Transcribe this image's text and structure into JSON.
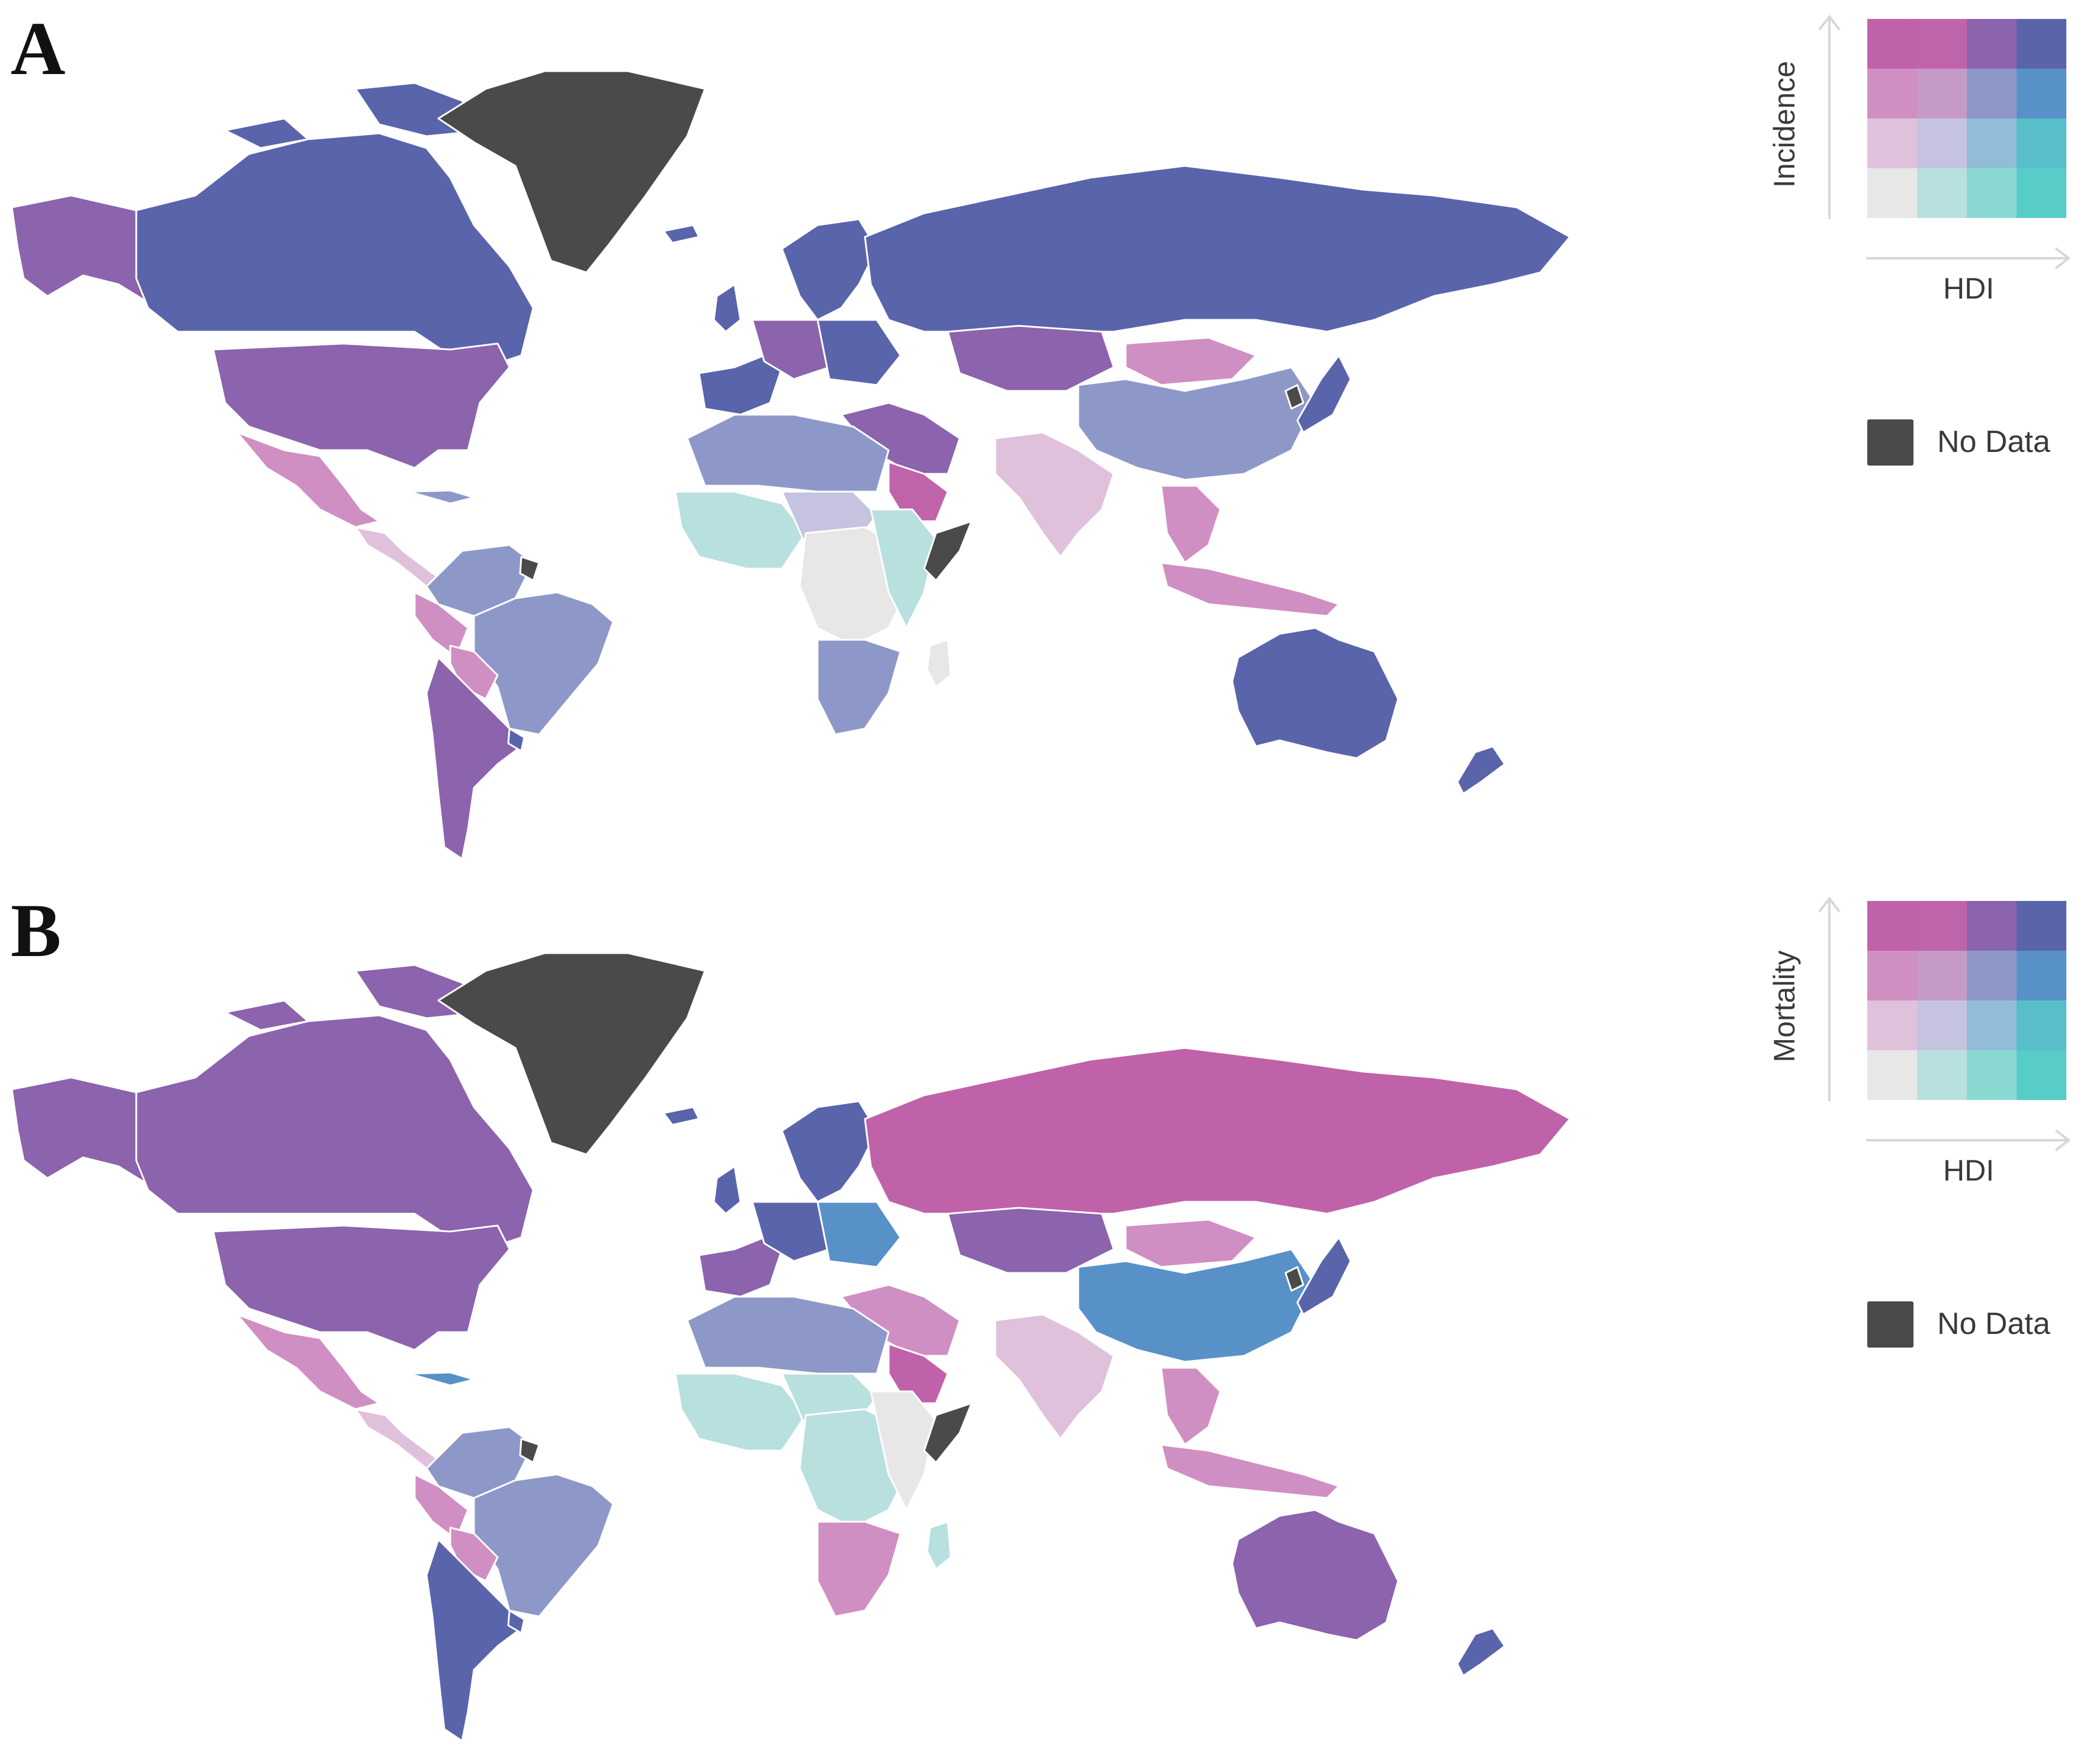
{
  "colors": {
    "no_data": "#4a4a4a",
    "bivariate_grid_top_to_bottom": [
      [
        "#c062aa",
        "#bf64ab",
        "#8c63ad",
        "#5a64ab"
      ],
      [
        "#d08fc3",
        "#c59ac7",
        "#8e98c8",
        "#5891c8"
      ],
      [
        "#e0c1dc",
        "#c5c3df",
        "#92bcd8",
        "#58bec9"
      ],
      [
        "#e7e7e7",
        "#b8e0df",
        "#8ad8d2",
        "#58ccc8"
      ]
    ]
  },
  "panels": [
    {
      "letter": "A",
      "legend": {
        "y_label": "Incidence",
        "x_label": "HDI",
        "no_data_label": "No Data"
      },
      "regions": {
        "greenland": "#4a4a4a",
        "alaska": "#8c63ad",
        "canada": "#5a64ab",
        "usa": "#8c63ad",
        "mexico": "#d08fc3",
        "central_america": "#e0c1dc",
        "caribbean": "#8e98c8",
        "south_america_north": "#8e98c8",
        "brazil": "#8e98c8",
        "peru": "#d08fc3",
        "bolivia": "#d08fc3",
        "southern_cone": "#8c63ad",
        "uruguay": "#5a64ab",
        "guiana": "#4a4a4a",
        "iceland": "#5a64ab",
        "uk": "#5a64ab",
        "scandinavia": "#5a64ab",
        "western_europe": "#5a64ab",
        "central_europe": "#8c63ad",
        "eastern_europe": "#5a64ab",
        "russia": "#5a64ab",
        "kazakhstan": "#8c63ad",
        "mongolia": "#d08fc3",
        "china": "#8e98c8",
        "india": "#e0c1dc",
        "middle_east": "#8c63ad",
        "arabia_gulf": "#bf64ab",
        "southeast_asia": "#d08fc3",
        "korea_north": "#4a4a4a",
        "japan": "#5a64ab",
        "indonesia": "#d08fc3",
        "north_africa": "#8e98c8",
        "west_africa": "#b8e0df",
        "sahel": "#c5c3df",
        "central_africa": "#e7e7e7",
        "east_africa": "#b8e0df",
        "horn_somalia": "#4a4a4a",
        "southern_africa": "#8e98c8",
        "madagascar": "#e7e7e7",
        "australia": "#5a64ab",
        "new_zealand": "#5a64ab"
      }
    },
    {
      "letter": "B",
      "legend": {
        "y_label": "Mortality",
        "x_label": "HDI",
        "no_data_label": "No Data"
      },
      "regions": {
        "greenland": "#4a4a4a",
        "alaska": "#8c63ad",
        "canada": "#8c63ad",
        "usa": "#8c63ad",
        "mexico": "#d08fc3",
        "central_america": "#e0c1dc",
        "caribbean": "#5891c8",
        "south_america_north": "#8e98c8",
        "brazil": "#8e98c8",
        "peru": "#d08fc3",
        "bolivia": "#d08fc3",
        "southern_cone": "#5a64ab",
        "uruguay": "#5a64ab",
        "guiana": "#4a4a4a",
        "iceland": "#5a64ab",
        "uk": "#5a64ab",
        "scandinavia": "#5a64ab",
        "western_europe": "#8c63ad",
        "central_europe": "#5a64ab",
        "eastern_europe": "#5891c8",
        "russia": "#c062aa",
        "kazakhstan": "#8c63ad",
        "mongolia": "#d08fc3",
        "china": "#5891c8",
        "india": "#e0c1dc",
        "middle_east": "#d08fc3",
        "arabia_gulf": "#c062aa",
        "southeast_asia": "#d08fc3",
        "korea_north": "#4a4a4a",
        "japan": "#5a64ab",
        "indonesia": "#d08fc3",
        "north_africa": "#8e98c8",
        "west_africa": "#b8e0df",
        "sahel": "#b8e0df",
        "central_africa": "#b8e0df",
        "east_africa": "#e7e7e7",
        "horn_somalia": "#4a4a4a",
        "southern_africa": "#d08fc3",
        "madagascar": "#b8e0df",
        "australia": "#8c63ad",
        "new_zealand": "#5a64ab"
      }
    }
  ]
}
